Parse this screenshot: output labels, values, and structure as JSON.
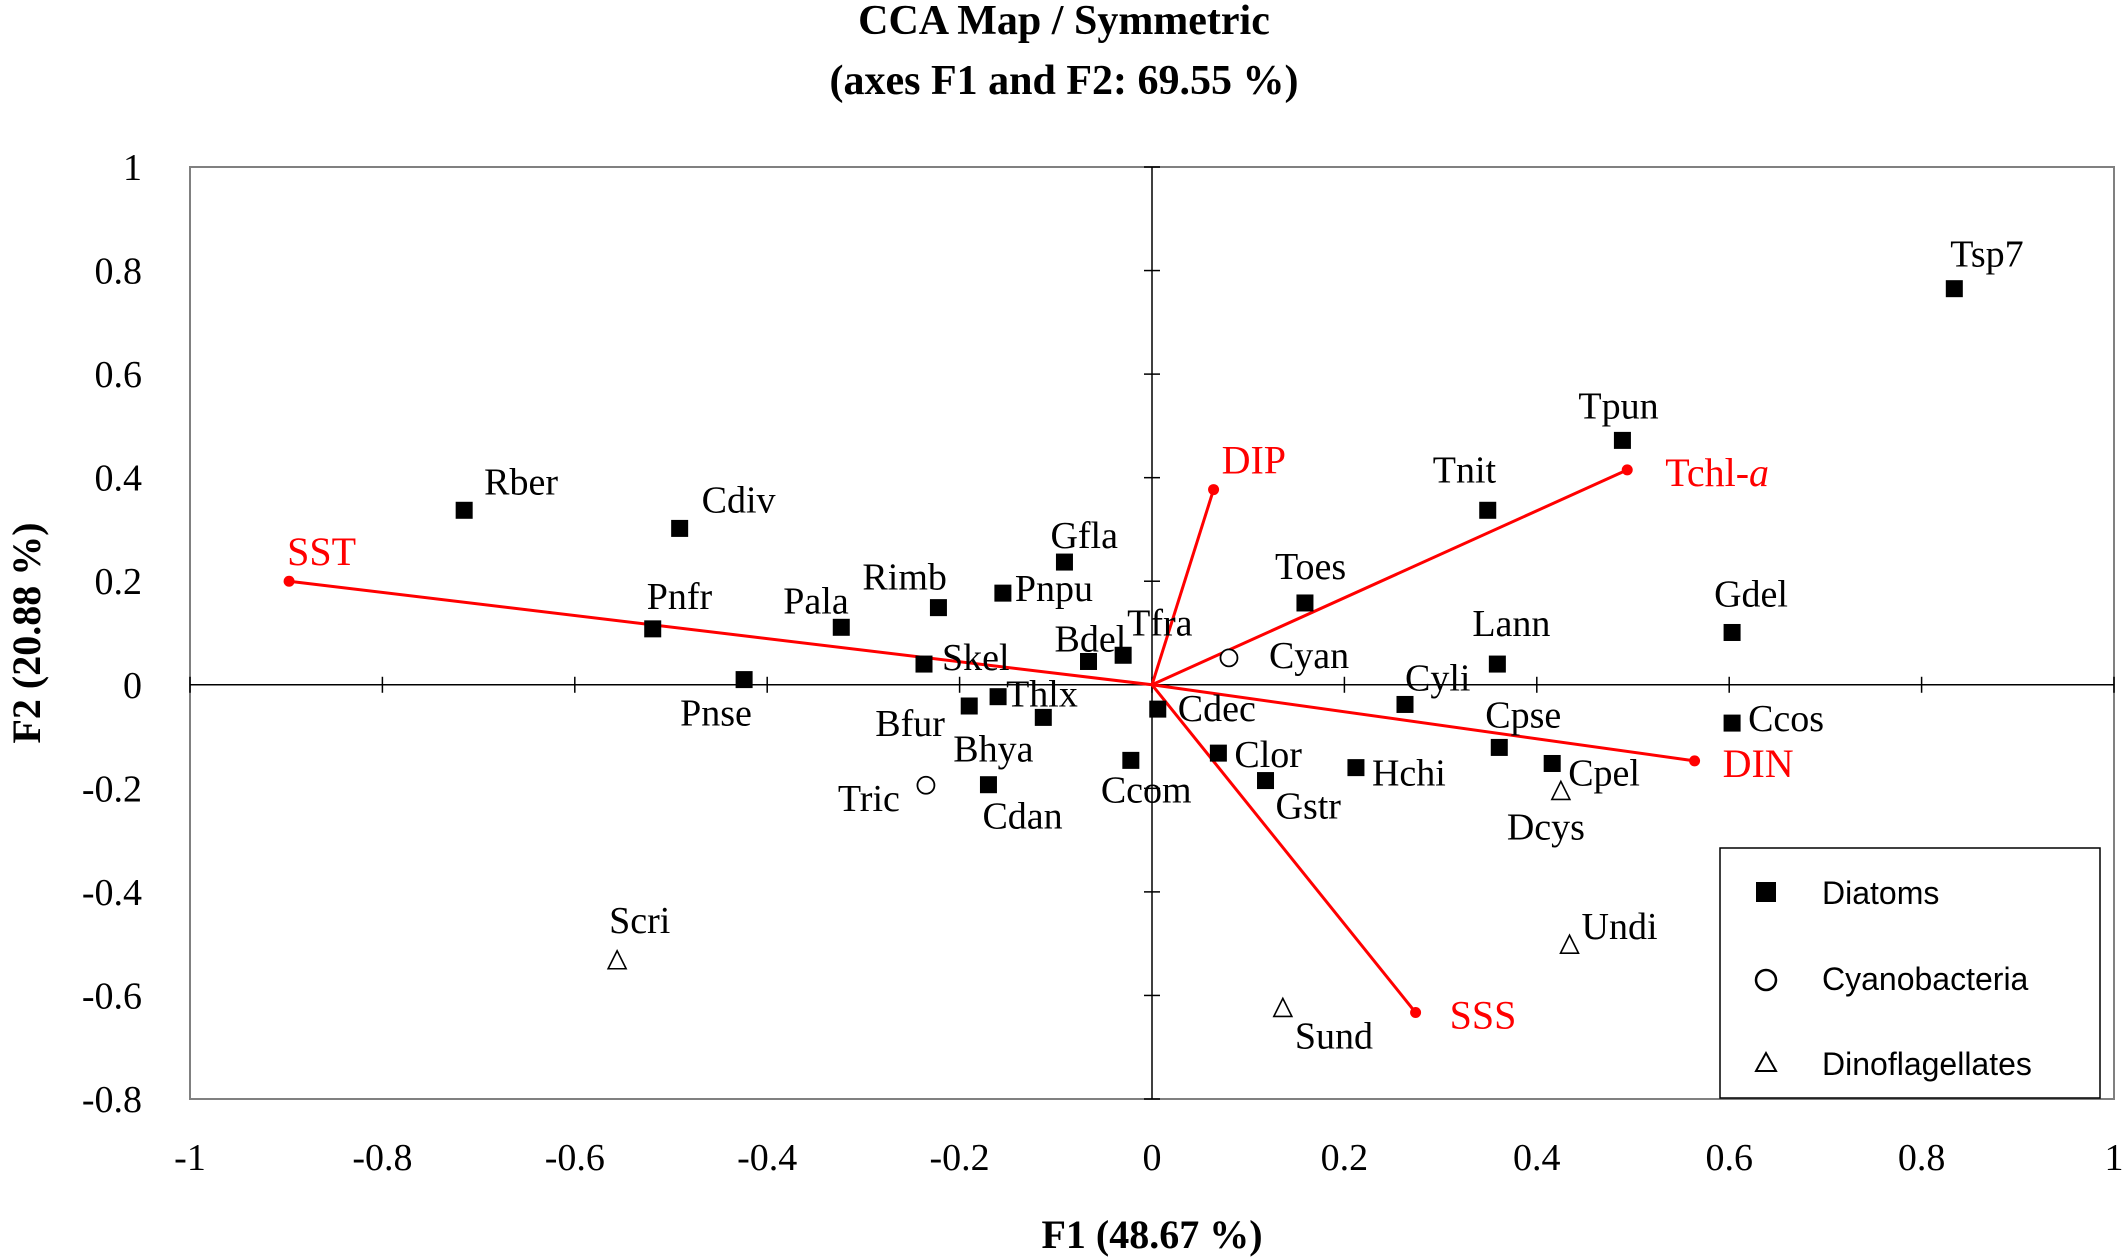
{
  "chart_data": {
    "type": "scatter",
    "title": "CCA Map / Symmetric",
    "subtitle": "(axes F1 and F2: 69.55 %)",
    "xlabel": "F1 (48.67 %)",
    "ylabel": "F2 (20.88 %)",
    "xlim": [
      -1,
      1
    ],
    "ylim": [
      -0.8,
      1
    ],
    "x_ticks": [
      "-1",
      "-0.8",
      "-0.6",
      "-0.4",
      "-0.2",
      "0",
      "0.2",
      "0.4",
      "0.6",
      "0.8",
      "1"
    ],
    "y_ticks": [
      "1",
      "0.8",
      "0.6",
      "0.4",
      "0.2",
      "0",
      "-0.2",
      "-0.4",
      "-0.6",
      "-0.8"
    ],
    "grid": false,
    "legend_position": "bottom-right",
    "legend": [
      {
        "label": "Diatoms",
        "marker": "square"
      },
      {
        "label": "Cyanobacteria",
        "marker": "circle"
      },
      {
        "label": "Dinoflagellates",
        "marker": "triangle"
      }
    ],
    "vector_color": "#ff0000",
    "vectors": [
      {
        "name": "SST",
        "x": -0.897,
        "y": 0.2
      },
      {
        "name": "DIP",
        "x": 0.064,
        "y": 0.377
      },
      {
        "name": "Tchl-",
        "name_italic": "a",
        "x": 0.494,
        "y": 0.415
      },
      {
        "name": "DIN",
        "x": 0.564,
        "y": -0.147
      },
      {
        "name": "SSS",
        "x": 0.274,
        "y": -0.633
      }
    ],
    "points": [
      {
        "label": "Tsp7",
        "group": "Diatoms",
        "x": 0.834,
        "y": 0.765
      },
      {
        "label": "Tpun",
        "group": "Diatoms",
        "x": 0.489,
        "y": 0.472
      },
      {
        "label": "Tnit",
        "group": "Diatoms",
        "x": 0.349,
        "y": 0.337
      },
      {
        "label": "Gdel",
        "group": "Diatoms",
        "x": 0.603,
        "y": 0.101
      },
      {
        "label": "Toes",
        "group": "Diatoms",
        "x": 0.159,
        "y": 0.158
      },
      {
        "label": "Lann",
        "group": "Diatoms",
        "x": 0.359,
        "y": 0.04
      },
      {
        "label": "Cyli",
        "group": "Diatoms",
        "x": 0.263,
        "y": -0.038
      },
      {
        "label": "Ccos",
        "group": "Diatoms",
        "x": 0.603,
        "y": -0.074
      },
      {
        "label": "Cpse",
        "group": "Diatoms",
        "x": 0.361,
        "y": -0.121
      },
      {
        "label": "Cpel",
        "group": "Diatoms",
        "x": 0.416,
        "y": -0.152
      },
      {
        "label": "Hchi",
        "group": "Diatoms",
        "x": 0.212,
        "y": -0.16
      },
      {
        "label": "Clor",
        "group": "Diatoms",
        "x": 0.069,
        "y": -0.132
      },
      {
        "label": "Gstr",
        "group": "Diatoms",
        "x": 0.118,
        "y": -0.185
      },
      {
        "label": "Cdec",
        "group": "Diatoms",
        "x": 0.006,
        "y": -0.047
      },
      {
        "label": "Ccom",
        "group": "Diatoms",
        "x": -0.022,
        "y": -0.146
      },
      {
        "label": "Tfra",
        "group": "Diatoms",
        "x": -0.03,
        "y": 0.057
      },
      {
        "label": "Bdel",
        "group": "Diatoms",
        "x": -0.066,
        "y": 0.045
      },
      {
        "label": "Gfla",
        "group": "Diatoms",
        "x": -0.091,
        "y": 0.237
      },
      {
        "label": "Pnpu",
        "group": "Diatoms",
        "x": -0.155,
        "y": 0.177
      },
      {
        "label": "Rimb",
        "group": "Diatoms",
        "x": -0.222,
        "y": 0.149
      },
      {
        "label": "Pala",
        "group": "Diatoms",
        "x": -0.323,
        "y": 0.111
      },
      {
        "label": "Skel",
        "group": "Diatoms",
        "x": -0.237,
        "y": 0.04
      },
      {
        "label": "Bfur",
        "group": "Diatoms",
        "x": -0.19,
        "y": -0.041
      },
      {
        "label": "Thlx",
        "group": "Diatoms",
        "x": -0.16,
        "y": -0.023
      },
      {
        "label": "Bhya",
        "group": "Diatoms",
        "x": -0.113,
        "y": -0.063
      },
      {
        "label": "Cdan",
        "group": "Diatoms",
        "x": -0.17,
        "y": -0.193
      },
      {
        "label": "Pnfr",
        "group": "Diatoms",
        "x": -0.519,
        "y": 0.108
      },
      {
        "label": "Pnse",
        "group": "Diatoms",
        "x": -0.424,
        "y": 0.01
      },
      {
        "label": "Cdiv",
        "group": "Diatoms",
        "x": -0.491,
        "y": 0.302
      },
      {
        "label": "Rber",
        "group": "Diatoms",
        "x": -0.715,
        "y": 0.337
      },
      {
        "label": "Cyan",
        "group": "Cyanobacteria",
        "x": 0.08,
        "y": 0.052
      },
      {
        "label": "Tric",
        "group": "Cyanobacteria",
        "x": -0.235,
        "y": -0.194
      },
      {
        "label": "Dcys",
        "group": "Dinoflagellates",
        "x": 0.425,
        "y": -0.206
      },
      {
        "label": "Undi",
        "group": "Dinoflagellates",
        "x": 0.434,
        "y": -0.503
      },
      {
        "label": "Sund",
        "group": "Dinoflagellates",
        "x": 0.136,
        "y": -0.625
      },
      {
        "label": "Scri",
        "group": "Dinoflagellates",
        "x": -0.556,
        "y": -0.533
      }
    ]
  }
}
